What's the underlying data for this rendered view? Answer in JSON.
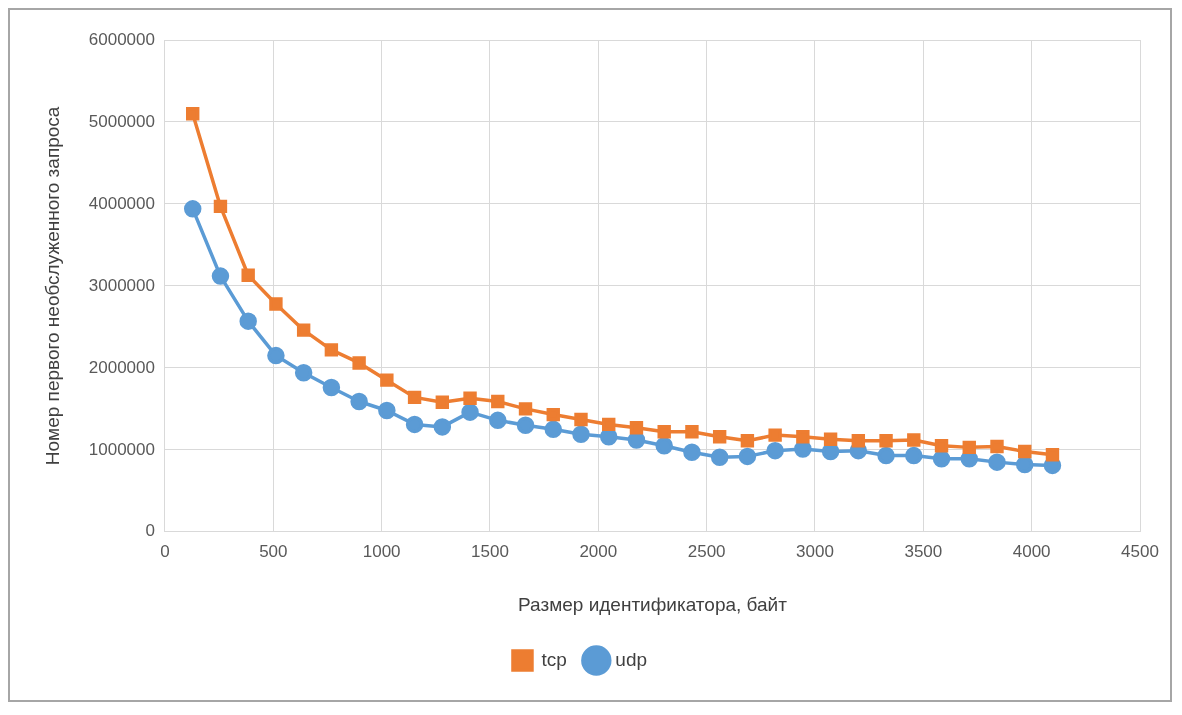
{
  "chart_data": {
    "type": "line",
    "xlabel": "Размер идентификатора, байт",
    "ylabel": "Номер первого необслуженного запроса",
    "x": [
      128,
      256,
      384,
      512,
      640,
      768,
      896,
      1024,
      1152,
      1280,
      1408,
      1536,
      1664,
      1792,
      1920,
      2048,
      2176,
      2304,
      2432,
      2560,
      2688,
      2816,
      2944,
      3072,
      3200,
      3328,
      3456,
      3584,
      3712,
      3840,
      3968,
      4096
    ],
    "series": [
      {
        "name": "tcp",
        "color": "#ed7d31",
        "marker": "square",
        "values": [
          5100000,
          3970000,
          3130000,
          2780000,
          2460000,
          2220000,
          2060000,
          1850000,
          1640000,
          1580000,
          1630000,
          1590000,
          1500000,
          1430000,
          1370000,
          1310000,
          1270000,
          1220000,
          1220000,
          1160000,
          1110000,
          1180000,
          1160000,
          1130000,
          1110000,
          1110000,
          1120000,
          1050000,
          1030000,
          1040000,
          980000,
          940000
        ]
      },
      {
        "name": "udp",
        "color": "#5b9bd5",
        "marker": "circle",
        "values": [
          3940000,
          3120000,
          2570000,
          2150000,
          1940000,
          1760000,
          1590000,
          1480000,
          1310000,
          1280000,
          1460000,
          1360000,
          1300000,
          1250000,
          1190000,
          1160000,
          1120000,
          1050000,
          970000,
          910000,
          920000,
          990000,
          1010000,
          980000,
          990000,
          930000,
          930000,
          890000,
          890000,
          850000,
          820000,
          810000
        ]
      }
    ],
    "xlim": [
      0,
      4500
    ],
    "xticks": [
      0,
      500,
      1000,
      1500,
      2000,
      2500,
      3000,
      3500,
      4000,
      4500
    ],
    "ylim": [
      0,
      6000000
    ],
    "yticks": [
      0,
      1000000,
      2000000,
      3000000,
      4000000,
      5000000,
      6000000
    ],
    "grid": true,
    "legend": "bottom"
  }
}
